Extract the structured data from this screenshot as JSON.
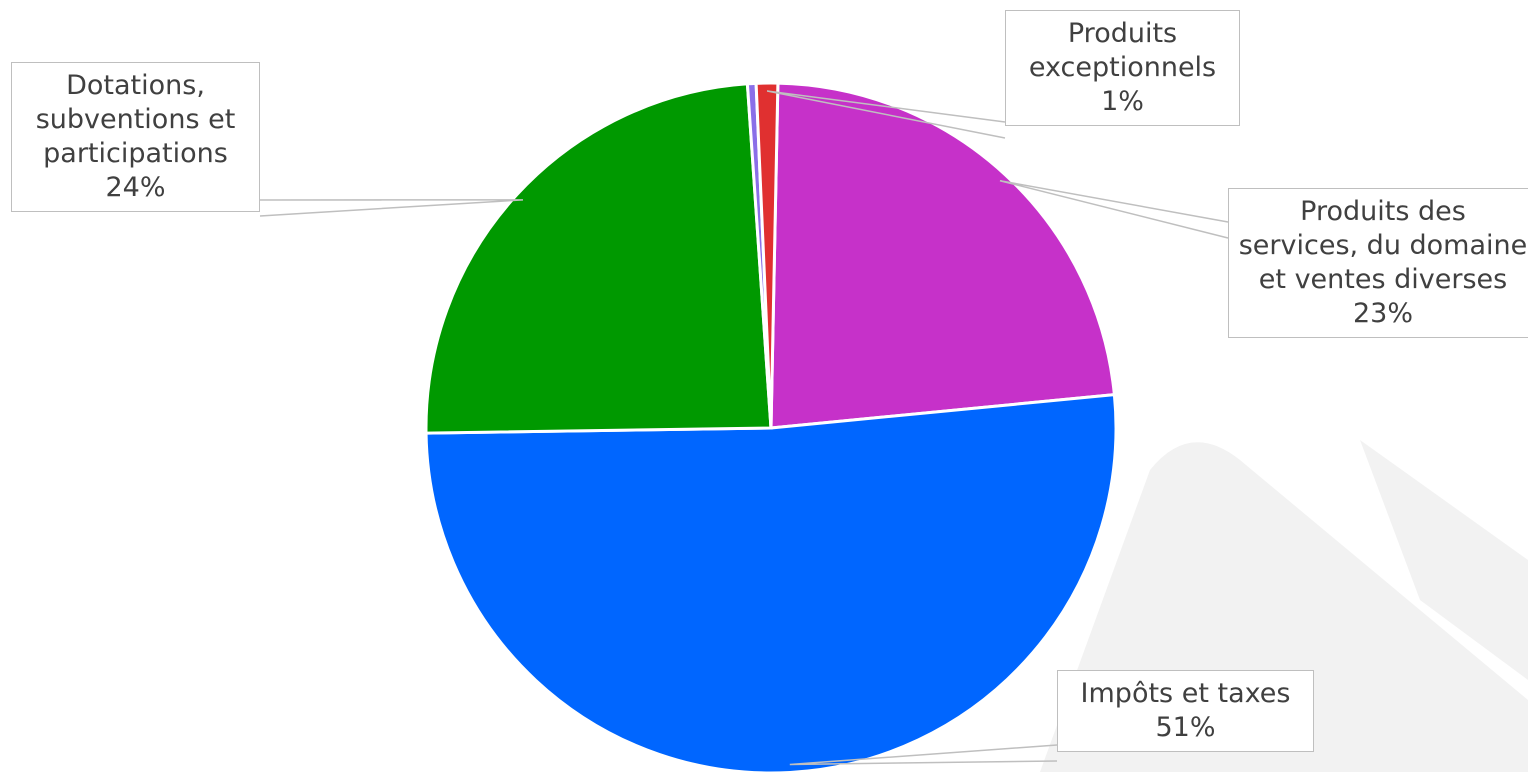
{
  "chart_data": {
    "type": "pie",
    "categories": [
      "Produits des services, du domaine et ventes diverses",
      "Impôts et taxes",
      "Dotations, subventions et participations",
      null,
      "Produits exceptionnels"
    ],
    "values": [
      23,
      51,
      24,
      0.4,
      1
    ],
    "value_labels": [
      "23%",
      "51%",
      "24%",
      null,
      "1%"
    ],
    "colors": [
      "#c631c9",
      "#0066ff",
      "#009900",
      "#8a6fe8",
      "#e03030"
    ]
  }
}
